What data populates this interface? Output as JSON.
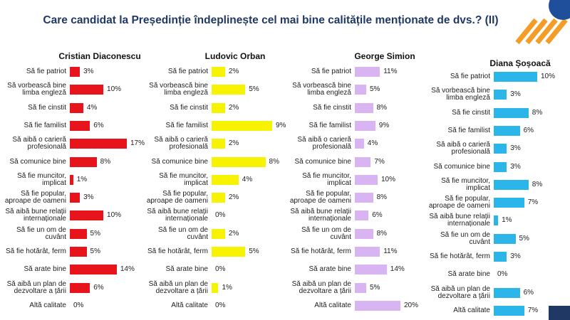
{
  "title": "Care candidat la Președinție îndeplinește cel mai bine calitățile menționate de dvs.? (II)",
  "chart_data": [
    {
      "type": "bar",
      "orientation": "horizontal",
      "title": "Cristian Diaconescu",
      "color": "#e8141b",
      "categories": [
        "Să fie patriot",
        "Să vorbească bine limba engleză",
        "Să fie cinstit",
        "Să fie familist",
        "Să aibă o carieră profesională",
        "Să comunice bine",
        "Să fie muncitor, implicat",
        "Să fie popular, aproape de oameni",
        "Să aibă bune relații internaționale",
        "Să fie un om de cuvânt",
        "Să fie hotărât, ferm",
        "Să arate bine",
        "Să aibă un plan de dezvoltare a țării",
        "Altă calitate"
      ],
      "values": [
        3,
        10,
        4,
        6,
        17,
        8,
        1,
        3,
        10,
        5,
        5,
        14,
        6,
        0
      ],
      "value_labels": [
        "3%",
        "10%",
        "4%",
        "6%",
        "17%",
        "8%",
        "1%",
        "3%",
        "10%",
        "5%",
        "5%",
        "14%",
        "6%",
        "0%"
      ]
    },
    {
      "type": "bar",
      "orientation": "horizontal",
      "title": "Ludovic Orban",
      "color": "#f7f300",
      "categories": [
        "Să fie patriot",
        "Să vorbească bine limba engleză",
        "Să fie cinstit",
        "Să fie familist",
        "Să aibă o carieră profesională",
        "Să comunice bine",
        "Să fie muncitor, implicat",
        "Să fie popular, aproape de oameni",
        "Să aibă bune relații internaționale",
        "Să fie un om de cuvânt",
        "Să fie hotărât, ferm",
        "Să arate bine",
        "Să aibă un plan de dezvoltare a țării",
        "Altă calitate"
      ],
      "values": [
        2,
        5,
        2,
        9,
        2,
        8,
        4,
        2,
        0,
        2,
        5,
        0,
        1,
        0
      ],
      "value_labels": [
        "2%",
        "5%",
        "2%",
        "9%",
        "2%",
        "8%",
        "4%",
        "2%",
        "0%",
        "2%",
        "5%",
        "0%",
        "1%",
        "0%"
      ]
    },
    {
      "type": "bar",
      "orientation": "horizontal",
      "title": "George Simion",
      "color": "#d8b4f2",
      "categories": [
        "Să fie patriot",
        "Să vorbească bine limba engleză",
        "Să fie cinstit",
        "Să fie familist",
        "Să aibă o carieră profesională",
        "Să comunice bine",
        "Să fie muncitor, implicat",
        "Să fie popular, aproape de oameni",
        "Să aibă bune relații internaționale",
        "Să fie un om de cuvânt",
        "Să fie hotărât, ferm",
        "Să arate bine",
        "Să aibă un plan de dezvoltare a țării",
        "Altă calitate"
      ],
      "values": [
        11,
        5,
        8,
        9,
        4,
        7,
        10,
        8,
        6,
        8,
        11,
        14,
        5,
        20
      ],
      "value_labels": [
        "11%",
        "5%",
        "8%",
        "9%",
        "4%",
        "7%",
        "10%",
        "8%",
        "6%",
        "8%",
        "11%",
        "14%",
        "5%",
        "20%"
      ]
    },
    {
      "type": "bar",
      "orientation": "horizontal",
      "title": "Diana Șoșoacă",
      "color": "#2bb5e8",
      "categories": [
        "Să fie patriot",
        "Să vorbească bine limba engleză",
        "Să fie cinstit",
        "Să fie familist",
        "Să aibă o carieră profesională",
        "Să comunice bine",
        "Să fie muncitor, implicat",
        "Să fie popular, aproape de oameni",
        "Să aibă bune relații internaționale",
        "Să fie un om de cuvânt",
        "Să fie hotărât, ferm",
        "Să arate bine",
        "Să aibă un plan de dezvoltare a țării",
        "Altă calitate"
      ],
      "values": [
        10,
        3,
        8,
        6,
        3,
        3,
        8,
        7,
        1,
        5,
        3,
        0,
        6,
        7
      ],
      "value_labels": [
        "10%",
        "3%",
        "8%",
        "6%",
        "3%",
        "3%",
        "8%",
        "7%",
        "1%",
        "5%",
        "3%",
        "0%",
        "6%",
        "7%"
      ]
    }
  ]
}
